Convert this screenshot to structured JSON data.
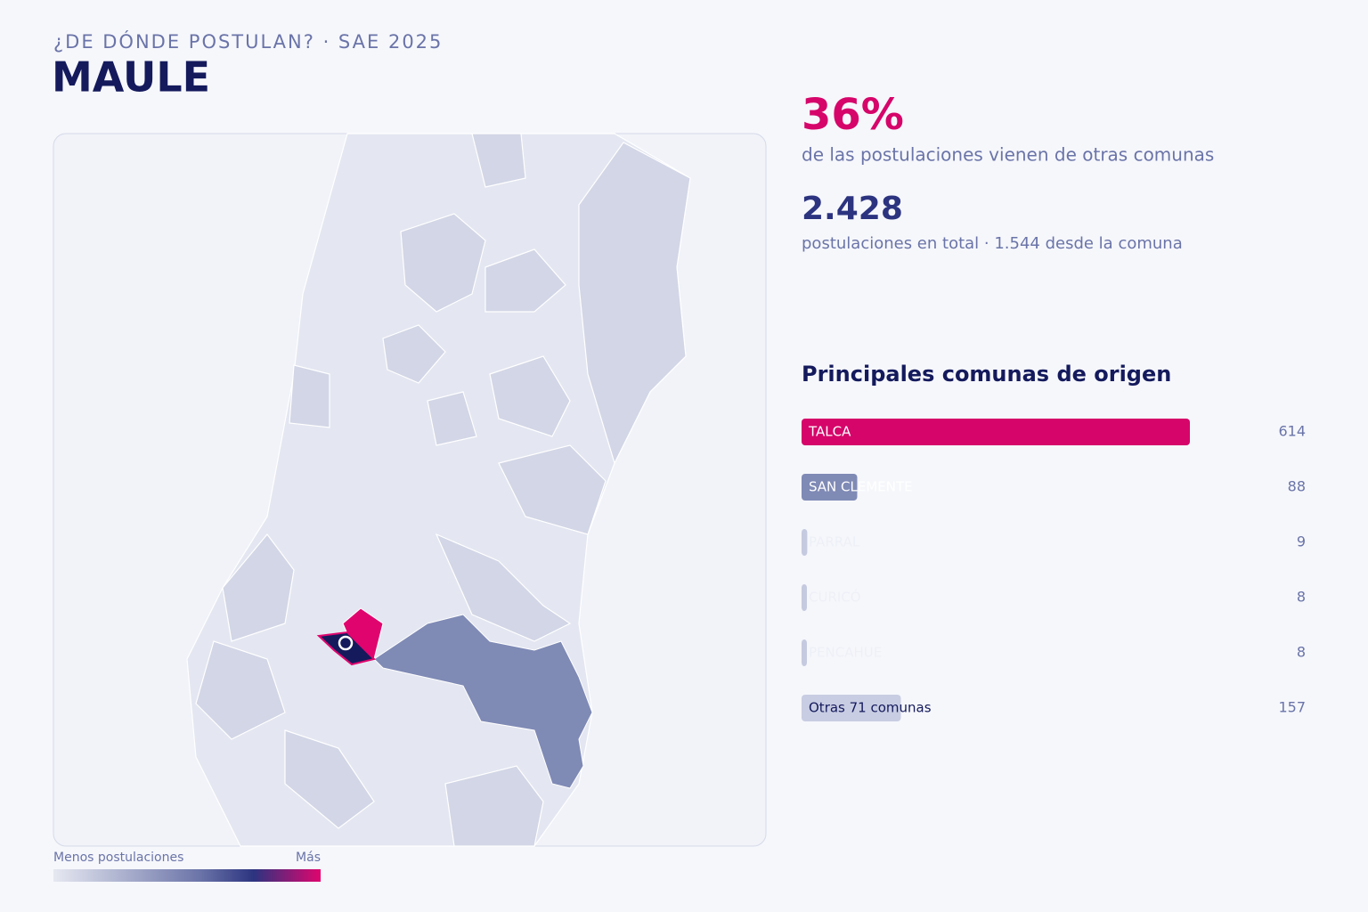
{
  "header": {
    "kicker": "¿DE DÓNDE POSTULAN? · SAE 2025",
    "title": "MAULE"
  },
  "stats": [
    {
      "value": "36%",
      "label": "de las postulaciones vienen de otras comunas"
    },
    {
      "value": "2.428",
      "label": "postulaciones en total · 1.544 desde la comuna"
    }
  ],
  "legend": {
    "low": "Menos postulaciones",
    "high": "Más"
  },
  "chart_data": {
    "type": "bar",
    "orientation": "horizontal",
    "title": "Principales comunas de origen",
    "categories": [
      "TALCA",
      "SAN CLEMENTE",
      "PARRAL",
      "CURICÓ",
      "PENCAHUE",
      "Otras 71 comunas"
    ],
    "values": [
      614,
      88,
      9,
      8,
      8,
      157
    ],
    "colors": [
      "#d6056a",
      "#7f8ab5",
      "#c5cae0",
      "#c5cae0",
      "#c5cae0",
      "#c8cde3"
    ],
    "label_colors": [
      "#ffffff",
      "#ffffff",
      "#eef0f7",
      "#eef0f7",
      "#eef0f7",
      "#141a5c"
    ],
    "xlim": [
      0,
      614
    ]
  }
}
